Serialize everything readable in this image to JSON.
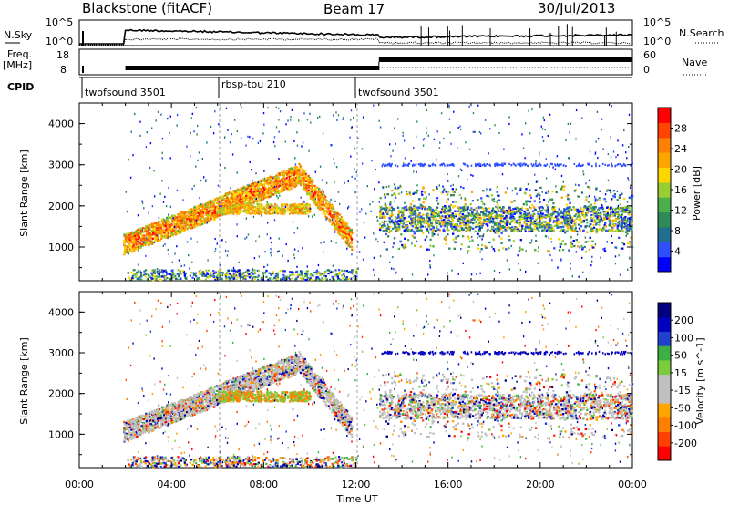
{
  "header": {
    "station": "Blackstone (fitACF)",
    "beam": "Beam 17",
    "date": "30/Jul/2013"
  },
  "noise_panel": {
    "left_label": "N.Sky",
    "right_label": "N.Search",
    "left_ticks": [
      "10^5",
      "10^0"
    ],
    "right_ticks": [
      "10^5",
      "10^0"
    ]
  },
  "freq_panel": {
    "left_label_line1": "Freq.",
    "left_label_line2": "[MHz]",
    "right_label": "Nave",
    "left_ticks": [
      "18",
      "8"
    ],
    "right_ticks": [
      "60",
      "0"
    ]
  },
  "cpid_panel": {
    "label": "CPID",
    "segments": [
      {
        "name": "twofsound 3501",
        "start_hour": 0
      },
      {
        "name": "rbsp-tou 210",
        "start_hour": 6
      },
      {
        "name": "twofsound 3501",
        "start_hour": 12.1
      }
    ]
  },
  "axes": {
    "x_label": "Time UT",
    "x_ticks": [
      "00:00",
      "04:00",
      "08:00",
      "12:00",
      "16:00",
      "20:00",
      "00:00"
    ],
    "y_label": "Slant Range [km]",
    "y_ticks": [
      "1000",
      "2000",
      "3000",
      "4000"
    ],
    "y_range_km": [
      180,
      4500
    ],
    "x_range_hours": [
      0,
      24
    ]
  },
  "colors": {
    "power_scale": [
      "#0000ff",
      "#2f4fff",
      "#1f6f8f",
      "#2e8b57",
      "#4cae4c",
      "#9acd32",
      "#ffd700",
      "#ffa500",
      "#ff7f00",
      "#ff4500",
      "#ff0000"
    ],
    "velocity_scale": [
      "#ff0000",
      "#ff4000",
      "#ff8000",
      "#ffa500",
      "#c0c0c0",
      "#c0c0c0",
      "#7ccd3c",
      "#3cb043",
      "#2040d0",
      "#0000c0",
      "#000080"
    ]
  },
  "chart_data": [
    {
      "type": "heatmap",
      "name": "power",
      "ylabel": "Slant Range [km]",
      "xlabel": "Time UT",
      "colorbar_label": "Power [dB]",
      "colorbar_ticks": [
        "4",
        "8",
        "12",
        "16",
        "20",
        "24",
        "28"
      ],
      "colorbar_range": [
        0,
        30
      ],
      "bands": [
        {
          "t_start": 2.0,
          "t_end": 11.7,
          "range_start_km": 1100,
          "range_end_km": 2900,
          "power_db": 24
        },
        {
          "t_start": 6.0,
          "t_end": 10.0,
          "range_start_km": 1900,
          "range_end_km": 2200,
          "power_db": 16
        },
        {
          "t_start": 13.0,
          "t_end": 24.0,
          "range_start_km": 1500,
          "range_end_km": 1900,
          "power_db": 14
        }
      ]
    },
    {
      "type": "heatmap",
      "name": "velocity",
      "ylabel": "Slant Range [km]",
      "xlabel": "Time UT",
      "colorbar_label": "Velocity [m s^-1]",
      "colorbar_ticks": [
        "-200",
        "-100",
        "-50",
        "-15",
        "15",
        "50",
        "100",
        "200"
      ],
      "colorbar_range": [
        -250,
        250
      ]
    }
  ]
}
